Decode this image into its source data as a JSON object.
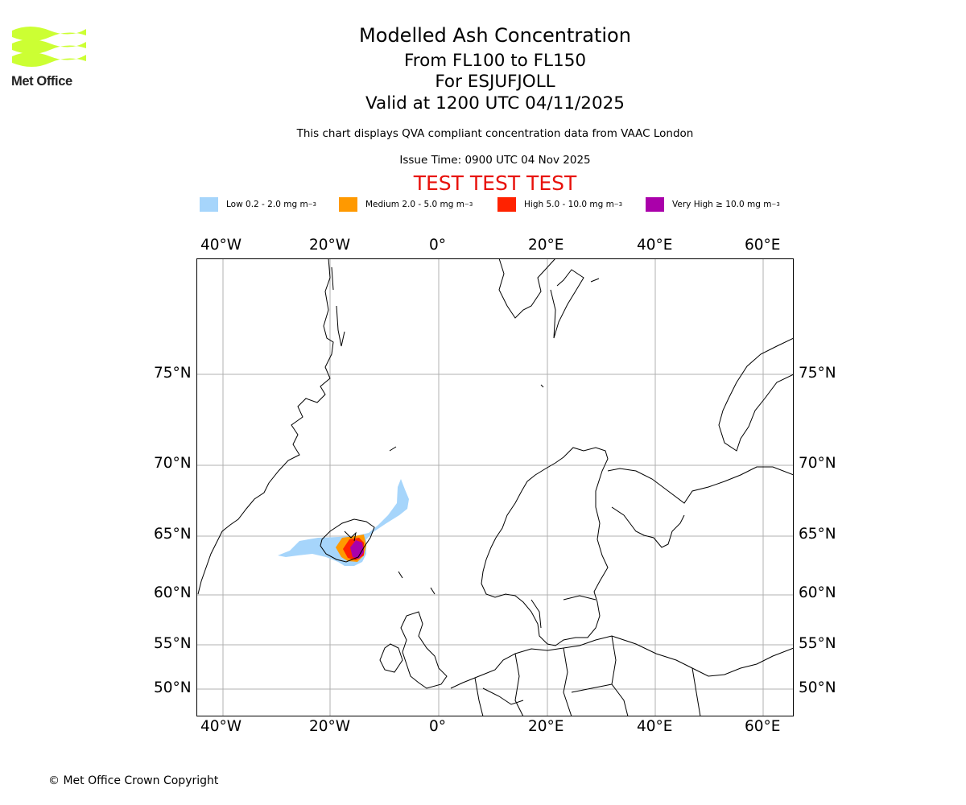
{
  "header": {
    "title": "Modelled Ash Concentration",
    "flight_levels": "From FL100 to FL150",
    "volcano": "For ESJUFJOLL",
    "valid_time": "Valid at 1200 UTC 04/11/2025",
    "compliance_note": "This chart displays QVA compliant concentration data from VAAC London",
    "issue_time": "Issue Time: 0900 UTC 04 Nov 2025",
    "test_banner": "TEST TEST TEST"
  },
  "logo": {
    "text": "Met Office",
    "color": "#ccff33"
  },
  "legend": [
    {
      "label": "Low 0.2 - 2.0 mg m",
      "unit_exp": "−3",
      "color": "#a6d5fb"
    },
    {
      "label": "Medium 2.0 - 5.0 mg m",
      "unit_exp": "−3",
      "color": "#ff9900"
    },
    {
      "label": "High 5.0 - 10.0 mg m",
      "unit_exp": "−3",
      "color": "#ff2200"
    },
    {
      "label": "Very High  ≥  10.0 mg m",
      "unit_exp": "−3",
      "color": "#aa00aa"
    }
  ],
  "map": {
    "lon_labels": [
      "40°W",
      "20°W",
      "0°",
      "20°E",
      "40°E",
      "60°E"
    ],
    "lat_labels": [
      "75°N",
      "70°N",
      "65°N",
      "60°N",
      "55°N",
      "50°N"
    ],
    "gridline_color": "#b0b0b0"
  },
  "footer": {
    "copyright": "© Met Office Crown Copyright"
  }
}
